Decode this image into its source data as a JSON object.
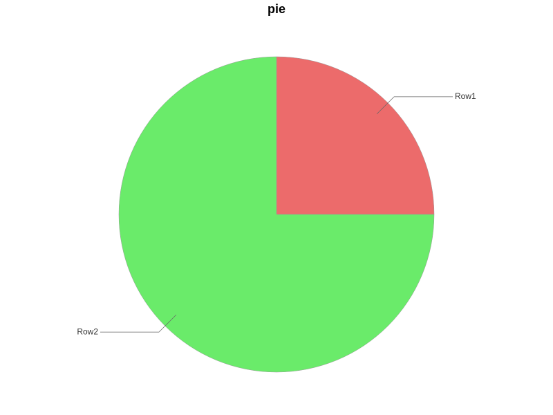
{
  "chart_data": {
    "type": "pie",
    "title": "pie",
    "categories": [
      "Row1",
      "Row2"
    ],
    "values": [
      25,
      75
    ],
    "colors": [
      "#ec6b6b",
      "#6aeb6a"
    ]
  }
}
